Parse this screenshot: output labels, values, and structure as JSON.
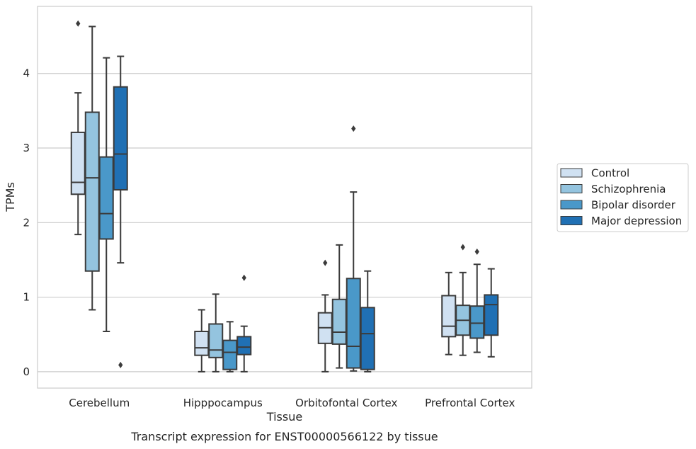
{
  "chart_data": {
    "type": "box",
    "caption": "Transcript expression for ENST00000566122 by tissue",
    "xlabel": "Tissue",
    "ylabel": "TPMs",
    "ylim": [
      -0.22,
      4.9
    ],
    "yticks": [
      0,
      1,
      2,
      3,
      4
    ],
    "grid": "horizontal",
    "legend_position": "right",
    "categories": [
      "Cerebellum",
      "Hipppocampus",
      "Orbitofontal Cortex",
      "Prefrontal Cortex"
    ],
    "series": [
      {
        "name": "Control",
        "color": "#d0e1f2",
        "boxes": [
          {
            "whisker_low": 1.84,
            "q1": 2.38,
            "median": 2.54,
            "q3": 3.21,
            "whisker_high": 3.74,
            "outliers": [
              4.67
            ]
          },
          {
            "whisker_low": 0.0,
            "q1": 0.22,
            "median": 0.32,
            "q3": 0.54,
            "whisker_high": 0.83,
            "outliers": []
          },
          {
            "whisker_low": 0.0,
            "q1": 0.38,
            "median": 0.59,
            "q3": 0.79,
            "whisker_high": 1.03,
            "outliers": [
              1.46
            ]
          },
          {
            "whisker_low": 0.23,
            "q1": 0.47,
            "median": 0.61,
            "q3": 1.02,
            "whisker_high": 1.33,
            "outliers": []
          }
        ]
      },
      {
        "name": "Schizophrenia",
        "color": "#94c4df",
        "boxes": [
          {
            "whisker_low": 0.83,
            "q1": 1.35,
            "median": 2.6,
            "q3": 3.48,
            "whisker_high": 4.63,
            "outliers": []
          },
          {
            "whisker_low": 0.0,
            "q1": 0.19,
            "median": 0.29,
            "q3": 0.64,
            "whisker_high": 1.04,
            "outliers": []
          },
          {
            "whisker_low": 0.05,
            "q1": 0.37,
            "median": 0.53,
            "q3": 0.97,
            "whisker_high": 1.7,
            "outliers": []
          },
          {
            "whisker_low": 0.22,
            "q1": 0.49,
            "median": 0.69,
            "q3": 0.89,
            "whisker_high": 1.33,
            "outliers": [
              1.67
            ]
          }
        ]
      },
      {
        "name": "Bipolar disorder",
        "color": "#4a98c9",
        "boxes": [
          {
            "whisker_low": 0.54,
            "q1": 1.78,
            "median": 2.12,
            "q3": 2.88,
            "whisker_high": 4.21,
            "outliers": []
          },
          {
            "whisker_low": 0.0,
            "q1": 0.03,
            "median": 0.26,
            "q3": 0.42,
            "whisker_high": 0.67,
            "outliers": []
          },
          {
            "whisker_low": 0.01,
            "q1": 0.05,
            "median": 0.34,
            "q3": 1.25,
            "whisker_high": 2.41,
            "outliers": [
              3.26
            ]
          },
          {
            "whisker_low": 0.26,
            "q1": 0.45,
            "median": 0.65,
            "q3": 0.88,
            "whisker_high": 1.44,
            "outliers": [
              1.61
            ]
          }
        ]
      },
      {
        "name": "Major depression",
        "color": "#2070b4",
        "boxes": [
          {
            "whisker_low": 1.46,
            "q1": 2.44,
            "median": 2.92,
            "q3": 3.82,
            "whisker_high": 4.23,
            "outliers": [
              0.09
            ]
          },
          {
            "whisker_low": 0.0,
            "q1": 0.23,
            "median": 0.33,
            "q3": 0.47,
            "whisker_high": 0.61,
            "outliers": [
              1.26
            ]
          },
          {
            "whisker_low": 0.0,
            "q1": 0.03,
            "median": 0.51,
            "q3": 0.86,
            "whisker_high": 1.35,
            "outliers": []
          },
          {
            "whisker_low": 0.2,
            "q1": 0.49,
            "median": 0.9,
            "q3": 1.03,
            "whisker_high": 1.38,
            "outliers": []
          }
        ]
      }
    ]
  }
}
